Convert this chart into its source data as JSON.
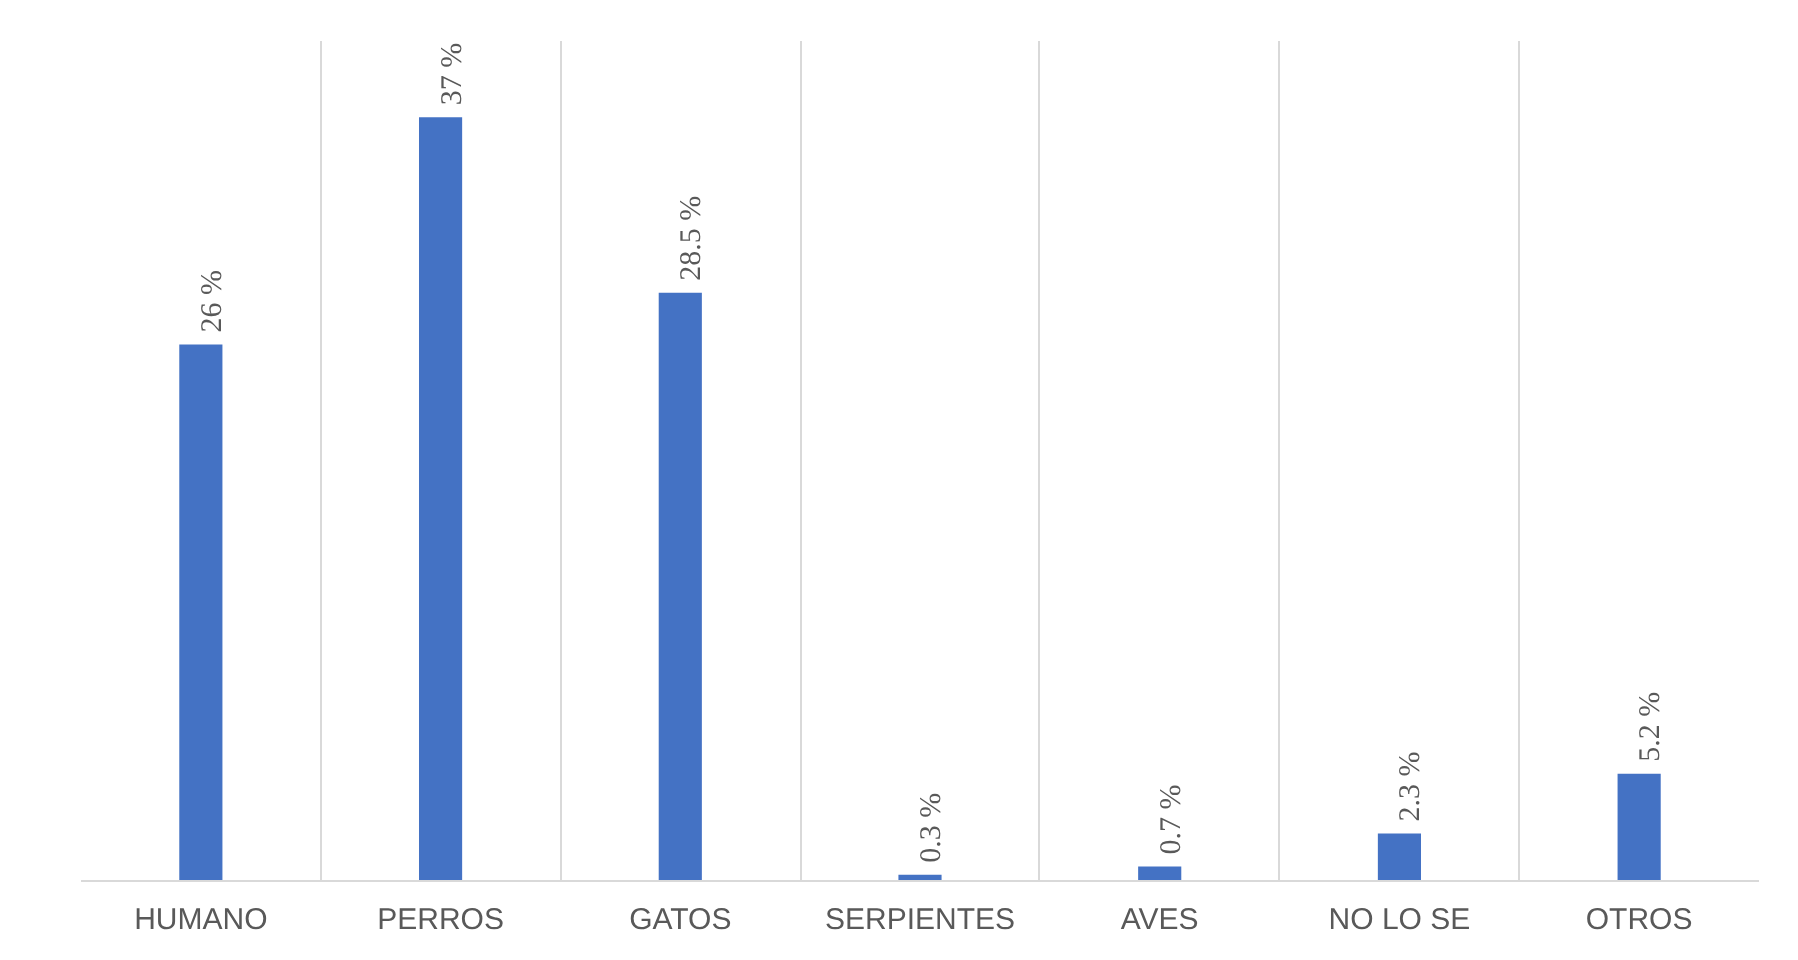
{
  "chart_data": {
    "type": "bar",
    "categories": [
      "HUMANO",
      "PERROS",
      "GATOS",
      "SERPIENTES",
      "AVES",
      "NO LO SE",
      "OTROS"
    ],
    "values": [
      26,
      37,
      28.5,
      0.3,
      0.7,
      2.3,
      5.2
    ],
    "value_labels": [
      "26 %",
      "37 %",
      "28.5 %",
      "0.3 %",
      "0.7 %",
      "2.3 %",
      "5.2 %"
    ],
    "color": "#4472c4",
    "grid": "x"
  }
}
